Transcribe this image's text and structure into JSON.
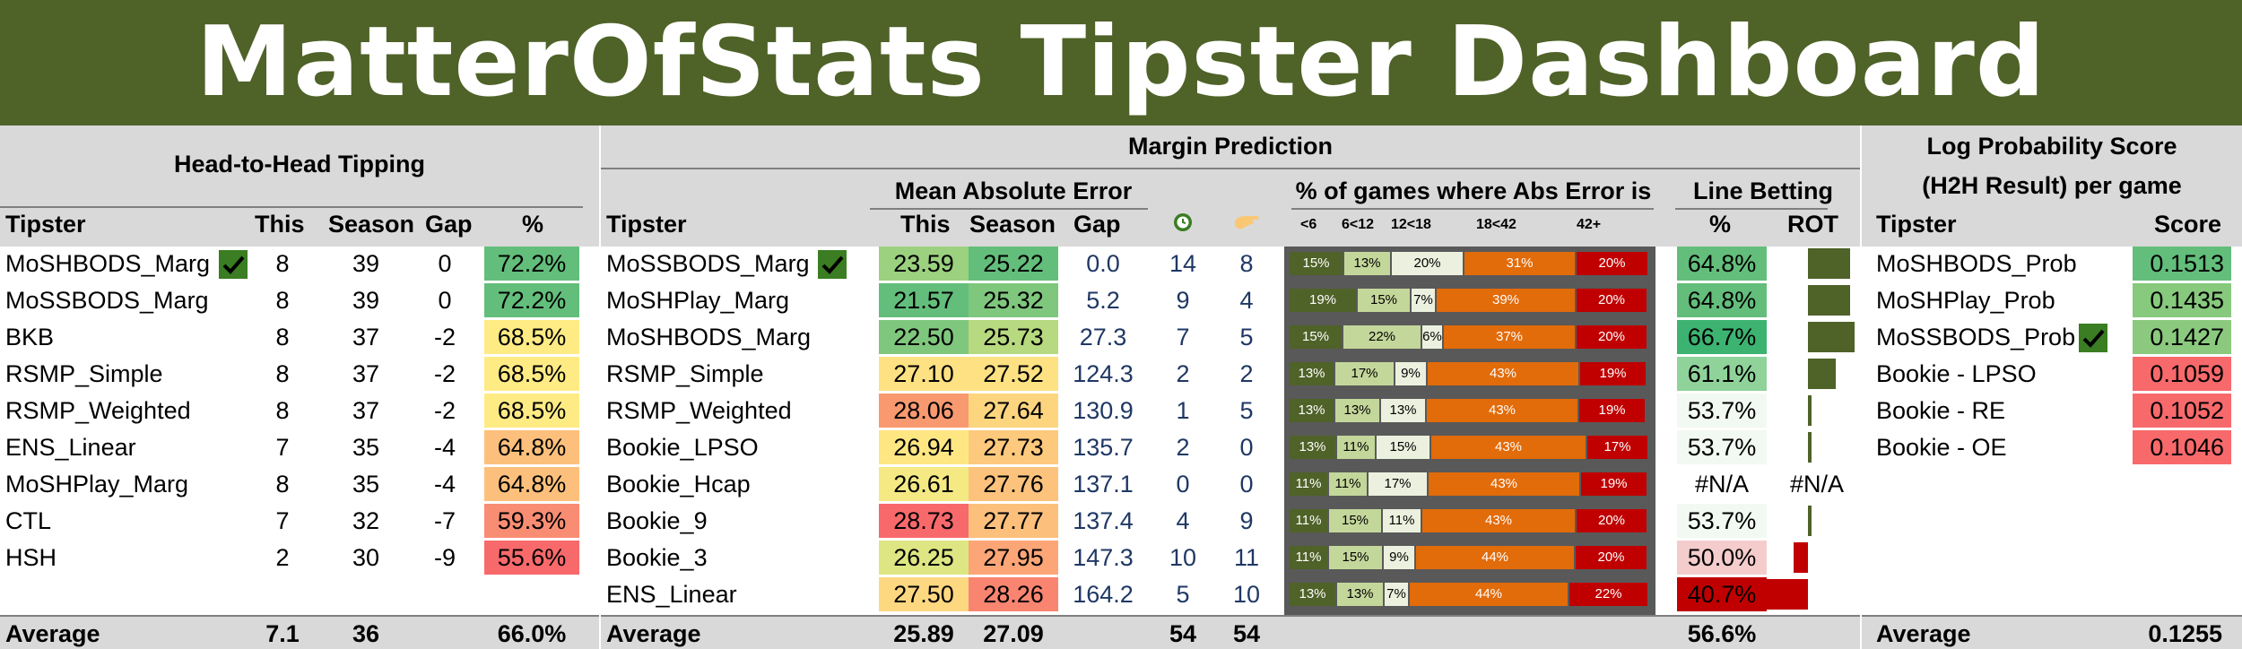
{
  "title": "MatterOfStats Tipster Dashboard",
  "h2h": {
    "title": "Head-to-Head Tipping",
    "headers": [
      "Tipster",
      "This",
      "Season",
      "Gap",
      "%"
    ],
    "rows": [
      {
        "tipster": "MoSHBODS_Marg",
        "check": true,
        "this": "8",
        "season": "39",
        "gap": "0",
        "pct": "72.2%",
        "color": "#63be7b"
      },
      {
        "tipster": "MoSSBODS_Marg",
        "check": false,
        "this": "8",
        "season": "39",
        "gap": "0",
        "pct": "72.2%",
        "color": "#63be7b"
      },
      {
        "tipster": "BKB",
        "check": false,
        "this": "8",
        "season": "37",
        "gap": "-2",
        "pct": "68.5%",
        "color": "#ffeb84"
      },
      {
        "tipster": "RSMP_Simple",
        "check": false,
        "this": "8",
        "season": "37",
        "gap": "-2",
        "pct": "68.5%",
        "color": "#ffeb84"
      },
      {
        "tipster": "RSMP_Weighted",
        "check": false,
        "this": "8",
        "season": "37",
        "gap": "-2",
        "pct": "68.5%",
        "color": "#ffeb84"
      },
      {
        "tipster": "ENS_Linear",
        "check": false,
        "this": "7",
        "season": "35",
        "gap": "-4",
        "pct": "64.8%",
        "color": "#fdc07c"
      },
      {
        "tipster": "MoSHPlay_Marg",
        "check": false,
        "this": "8",
        "season": "35",
        "gap": "-4",
        "pct": "64.8%",
        "color": "#fdc07c"
      },
      {
        "tipster": "CTL",
        "check": false,
        "this": "7",
        "season": "32",
        "gap": "-7",
        "pct": "59.3%",
        "color": "#f98d74"
      },
      {
        "tipster": "HSH",
        "check": false,
        "this": "2",
        "season": "30",
        "gap": "-9",
        "pct": "55.6%",
        "color": "#f8696b"
      }
    ],
    "average": {
      "label": "Average",
      "this": "7.1",
      "season": "36",
      "pct": "66.0%"
    }
  },
  "margin": {
    "title": "Margin Prediction",
    "mae_title": "Mean Absolute Error",
    "abs_title": "% of games where Abs Error is",
    "line_title": "Line Betting",
    "headers": [
      "Tipster",
      "This",
      "Season",
      "Gap"
    ],
    "abs_headers": [
      "<6",
      "6<12",
      "12<18",
      "18<42",
      "42+"
    ],
    "line_headers": [
      "%",
      "ROT"
    ],
    "icon1": "clock-icon",
    "icon2": "hand-icon",
    "rows": [
      {
        "tipster": "MoSSBODS_Marg",
        "check": true,
        "this": "23.59",
        "season": "25.22",
        "gap": "0.0",
        "c1": "14",
        "c2": "8",
        "this_color": "#9bd17f",
        "season_color": "#63be7b",
        "abs": [
          "15%",
          "13%",
          "20%",
          "31%",
          "20%"
        ],
        "abs_frac": [
          15,
          13,
          20,
          31,
          20
        ],
        "line": "64.8%",
        "line_color": "#63be7b",
        "rot": 0.9
      },
      {
        "tipster": "MoSHPlay_Marg",
        "check": false,
        "this": "21.57",
        "season": "25.32",
        "gap": "5.2",
        "c1": "9",
        "c2": "4",
        "this_color": "#63be7b",
        "season_color": "#7fc77d",
        "abs": [
          "19%",
          "15%",
          "7%",
          "39%",
          "20%"
        ],
        "abs_frac": [
          19,
          15,
          7,
          39,
          20
        ],
        "line": "64.8%",
        "line_color": "#63be7b",
        "rot": 0.9
      },
      {
        "tipster": "MoSHBODS_Marg",
        "check": false,
        "this": "22.50",
        "season": "25.73",
        "gap": "27.3",
        "c1": "7",
        "c2": "5",
        "this_color": "#7fc77d",
        "season_color": "#b7d97f",
        "abs": [
          "15%",
          "22%",
          "6%",
          "37%",
          "20%"
        ],
        "abs_frac": [
          15,
          22,
          6,
          37,
          20
        ],
        "line": "66.7%",
        "line_color": "#3cb371",
        "rot": 1.0
      },
      {
        "tipster": "RSMP_Simple",
        "check": false,
        "this": "27.10",
        "season": "27.52",
        "gap": "124.3",
        "c1": "2",
        "c2": "2",
        "this_color": "#fee182",
        "season_color": "#fee182",
        "abs": [
          "13%",
          "17%",
          "9%",
          "43%",
          "19%"
        ],
        "abs_frac": [
          13,
          17,
          9,
          43,
          19
        ],
        "line": "61.1%",
        "line_color": "#8fd39b",
        "rot": 0.6
      },
      {
        "tipster": "RSMP_Weighted",
        "check": false,
        "this": "28.06",
        "season": "27.64",
        "gap": "130.9",
        "c1": "1",
        "c2": "5",
        "this_color": "#f8996f",
        "season_color": "#fdd57f",
        "abs": [
          "13%",
          "13%",
          "13%",
          "43%",
          "19%"
        ],
        "abs_frac": [
          13,
          13,
          13,
          43,
          19
        ],
        "line": "53.7%",
        "line_color": "#f2f9f2",
        "rot": 0.08
      },
      {
        "tipster": "Bookie_LPSO",
        "check": false,
        "this": "26.94",
        "season": "27.73",
        "gap": "135.7",
        "c1": "2",
        "c2": "0",
        "this_color": "#fee783",
        "season_color": "#fdc97d",
        "abs": [
          "13%",
          "11%",
          "15%",
          "43%",
          "17%"
        ],
        "abs_frac": [
          13,
          11,
          15,
          43,
          17
        ],
        "line": "53.7%",
        "line_color": "#f2f9f2",
        "rot": 0.08
      },
      {
        "tipster": "Bookie_Hcap",
        "check": false,
        "this": "26.61",
        "season": "27.76",
        "gap": "137.1",
        "c1": "0",
        "c2": "0",
        "this_color": "#f4e983",
        "season_color": "#fdc27c",
        "abs": [
          "11%",
          "11%",
          "17%",
          "43%",
          "19%"
        ],
        "abs_frac": [
          11,
          11,
          17,
          43,
          19
        ],
        "line": "#N/A",
        "line_color": "#ffffff",
        "rot_text": "#N/A",
        "rot": 0
      },
      {
        "tipster": "Bookie_9",
        "check": false,
        "this": "28.73",
        "season": "27.77",
        "gap": "137.4",
        "c1": "4",
        "c2": "9",
        "this_color": "#f8696b",
        "season_color": "#fdc07c",
        "abs": [
          "11%",
          "15%",
          "11%",
          "43%",
          "20%"
        ],
        "abs_frac": [
          11,
          15,
          11,
          43,
          20
        ],
        "line": "53.7%",
        "line_color": "#f2f9f2",
        "rot": 0.08
      },
      {
        "tipster": "Bookie_3",
        "check": false,
        "this": "26.25",
        "season": "27.95",
        "gap": "147.3",
        "c1": "10",
        "c2": "11",
        "this_color": "#dde682",
        "season_color": "#fca677",
        "abs": [
          "11%",
          "15%",
          "9%",
          "44%",
          "20%"
        ],
        "abs_frac": [
          11,
          15,
          9,
          44,
          20
        ],
        "line": "50.0%",
        "line_color": "#f4cccc",
        "rot": -0.3
      },
      {
        "tipster": "ENS_Linear",
        "check": false,
        "this": "27.50",
        "season": "28.26",
        "gap": "164.2",
        "c1": "5",
        "c2": "10",
        "this_color": "#fed880",
        "season_color": "#f98570",
        "abs": [
          "13%",
          "13%",
          "7%",
          "44%",
          "22%"
        ],
        "abs_frac": [
          13,
          13,
          7,
          44,
          22
        ],
        "line": "40.7%",
        "line_color": "#c00000",
        "rot": -1.0
      }
    ],
    "average": {
      "label": "Average",
      "this": "25.89",
      "season": "27.09",
      "c1": "54",
      "c2": "54",
      "line": "56.6%"
    }
  },
  "logprob": {
    "title_line1": "Log Probability Score",
    "title_line2": "(H2H Result) per game",
    "headers": [
      "Tipster",
      "Score"
    ],
    "rows": [
      {
        "tipster": "MoSHBODS_Prob",
        "check": false,
        "score": "0.1513",
        "color": "#63be7b"
      },
      {
        "tipster": "MoSHPlay_Prob",
        "check": false,
        "score": "0.1435",
        "color": "#87c97d"
      },
      {
        "tipster": "MoSSBODS_Prob",
        "check": true,
        "score": "0.1427",
        "color": "#8bca7e"
      },
      {
        "tipster": "Bookie - LPSO",
        "check": false,
        "score": "0.1059",
        "color": "#f8696b"
      },
      {
        "tipster": "Bookie - RE",
        "check": false,
        "score": "0.1052",
        "color": "#f8696b"
      },
      {
        "tipster": "Bookie - OE",
        "check": false,
        "score": "0.1046",
        "color": "#f8696b"
      }
    ],
    "average": {
      "label": "Average",
      "score": "0.1255"
    }
  },
  "colors": {
    "banner": "#4f6228",
    "seg_dark": "#4f6228",
    "seg_mid": "#c4d79b",
    "seg_light": "#ebf1de",
    "seg_orange": "#e26b0a",
    "seg_red": "#c00000"
  }
}
